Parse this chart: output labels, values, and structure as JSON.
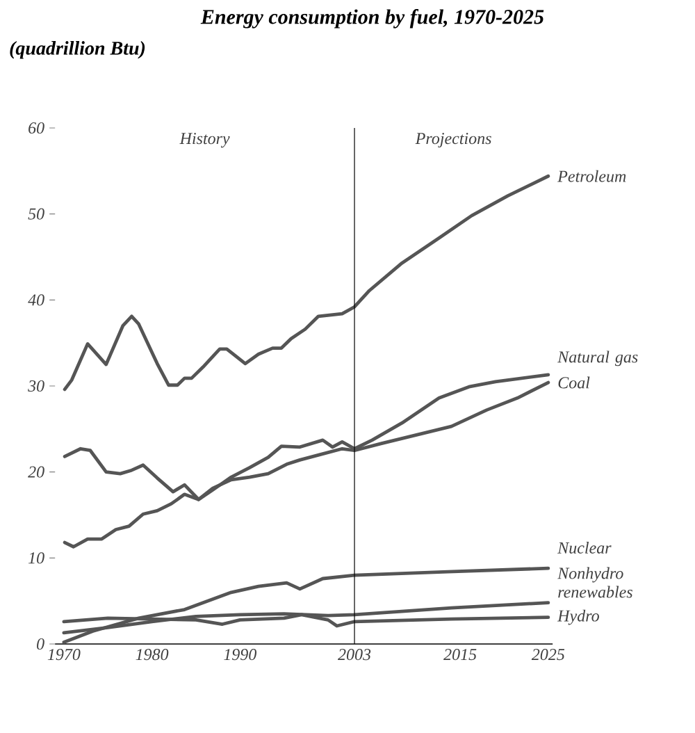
{
  "chart_data": {
    "type": "line",
    "title": "Energy consumption by fuel, 1970-2025",
    "subtitle": "(quadrillion Btu)",
    "xlim": [
      1969,
      2025.5
    ],
    "ylim": [
      0,
      60
    ],
    "xticks": [
      1970,
      1980,
      1990,
      2003,
      2015,
      2025
    ],
    "yticks": [
      0,
      10,
      20,
      30,
      40,
      50,
      60
    ],
    "ref_lines": [
      {
        "axis": "x",
        "value": 2003
      }
    ],
    "annotations": [
      "History",
      "Projections"
    ],
    "series": [
      {
        "name": "Petroleum",
        "color": "#555555",
        "x": [
          1970.1,
          1970.9,
          1972.7,
          1974.8,
          1976.7,
          1977.7,
          1978.5,
          1980.6,
          1981.9,
          1982.9,
          1983.7,
          1984.5,
          1985.8,
          1987.7,
          1988.5,
          1990.6,
          1992.1,
          1993.7,
          1994.7,
          1995.8,
          1997.4,
          1998.9,
          2001.6,
          2003,
          2004.7,
          2008.4,
          2012.6,
          2016.3,
          2020.4,
          2025
        ],
        "values": [
          29.6,
          30.7,
          34.9,
          32.5,
          37.0,
          38.1,
          37.2,
          32.6,
          30.1,
          30.1,
          30.9,
          30.9,
          32.2,
          34.3,
          34.3,
          32.6,
          33.7,
          34.4,
          34.4,
          35.5,
          36.6,
          38.1,
          38.4,
          39.2,
          41.1,
          44.3,
          47.2,
          49.8,
          52.1,
          54.4
        ]
      },
      {
        "name": "Natural gas",
        "color": "#555555",
        "x": [
          1970.1,
          1971.9,
          1973,
          1974.8,
          1976.4,
          1977.7,
          1979,
          1980.6,
          1982.4,
          1983.7,
          1985.3,
          1986.9,
          1989,
          1991.1,
          1993.2,
          1994.7,
          1996.8,
          1999.4,
          2000.5,
          2001.6,
          2003,
          2005,
          2008.4,
          2012.6,
          2016,
          2019,
          2025
        ],
        "values": [
          21.8,
          22.7,
          22.5,
          20.0,
          19.8,
          20.2,
          20.8,
          19.3,
          17.7,
          18.5,
          16.8,
          17.9,
          19.4,
          20.5,
          21.7,
          23.0,
          22.9,
          23.7,
          22.9,
          23.5,
          22.7,
          23.7,
          25.7,
          28.6,
          29.9,
          30.5,
          31.3
        ]
      },
      {
        "name": "Coal",
        "color": "#555555",
        "x": [
          1970.1,
          1971.1,
          1972.7,
          1974.3,
          1975.9,
          1977.4,
          1979,
          1980.6,
          1982.2,
          1983.7,
          1985.3,
          1986.9,
          1989,
          1991.1,
          1993.2,
          1995.3,
          1996.8,
          1999.4,
          2001.6,
          2003,
          2006,
          2010,
          2014,
          2018,
          2021.5,
          2025
        ],
        "values": [
          11.8,
          11.3,
          12.2,
          12.2,
          13.3,
          13.7,
          15.1,
          15.5,
          16.3,
          17.4,
          16.8,
          18.1,
          19.1,
          19.4,
          19.8,
          20.9,
          21.4,
          22.1,
          22.7,
          22.5,
          23.3,
          24.3,
          25.3,
          27.2,
          28.6,
          30.4
        ]
      },
      {
        "name": "Nuclear",
        "color": "#555555",
        "x": [
          1970,
          1973.3,
          1978.5,
          1983.7,
          1989,
          1992.1,
          1995.3,
          1996.8,
          1999.4,
          2003,
          2013.6,
          2025
        ],
        "values": [
          0.2,
          1.5,
          3.0,
          4.0,
          6.0,
          6.7,
          7.1,
          6.4,
          7.6,
          8.0,
          8.4,
          8.8
        ]
      },
      {
        "name": "Nonhydro renewables",
        "color": "#555555",
        "x": [
          1970,
          1975,
          1980,
          1985,
          1990,
          1995,
          2000,
          2003,
          2014,
          2025
        ],
        "values": [
          1.3,
          1.9,
          2.6,
          3.2,
          3.4,
          3.5,
          3.3,
          3.4,
          4.2,
          4.8
        ]
      },
      {
        "name": "Hydro",
        "color": "#555555",
        "x": [
          1970,
          1975,
          1980,
          1985,
          1988,
          1990,
          1995,
          1997,
          2000,
          2001,
          2003,
          2014,
          2025
        ],
        "values": [
          2.6,
          3.0,
          2.9,
          2.8,
          2.3,
          2.8,
          3.0,
          3.4,
          2.8,
          2.1,
          2.6,
          2.9,
          3.1
        ]
      }
    ]
  }
}
